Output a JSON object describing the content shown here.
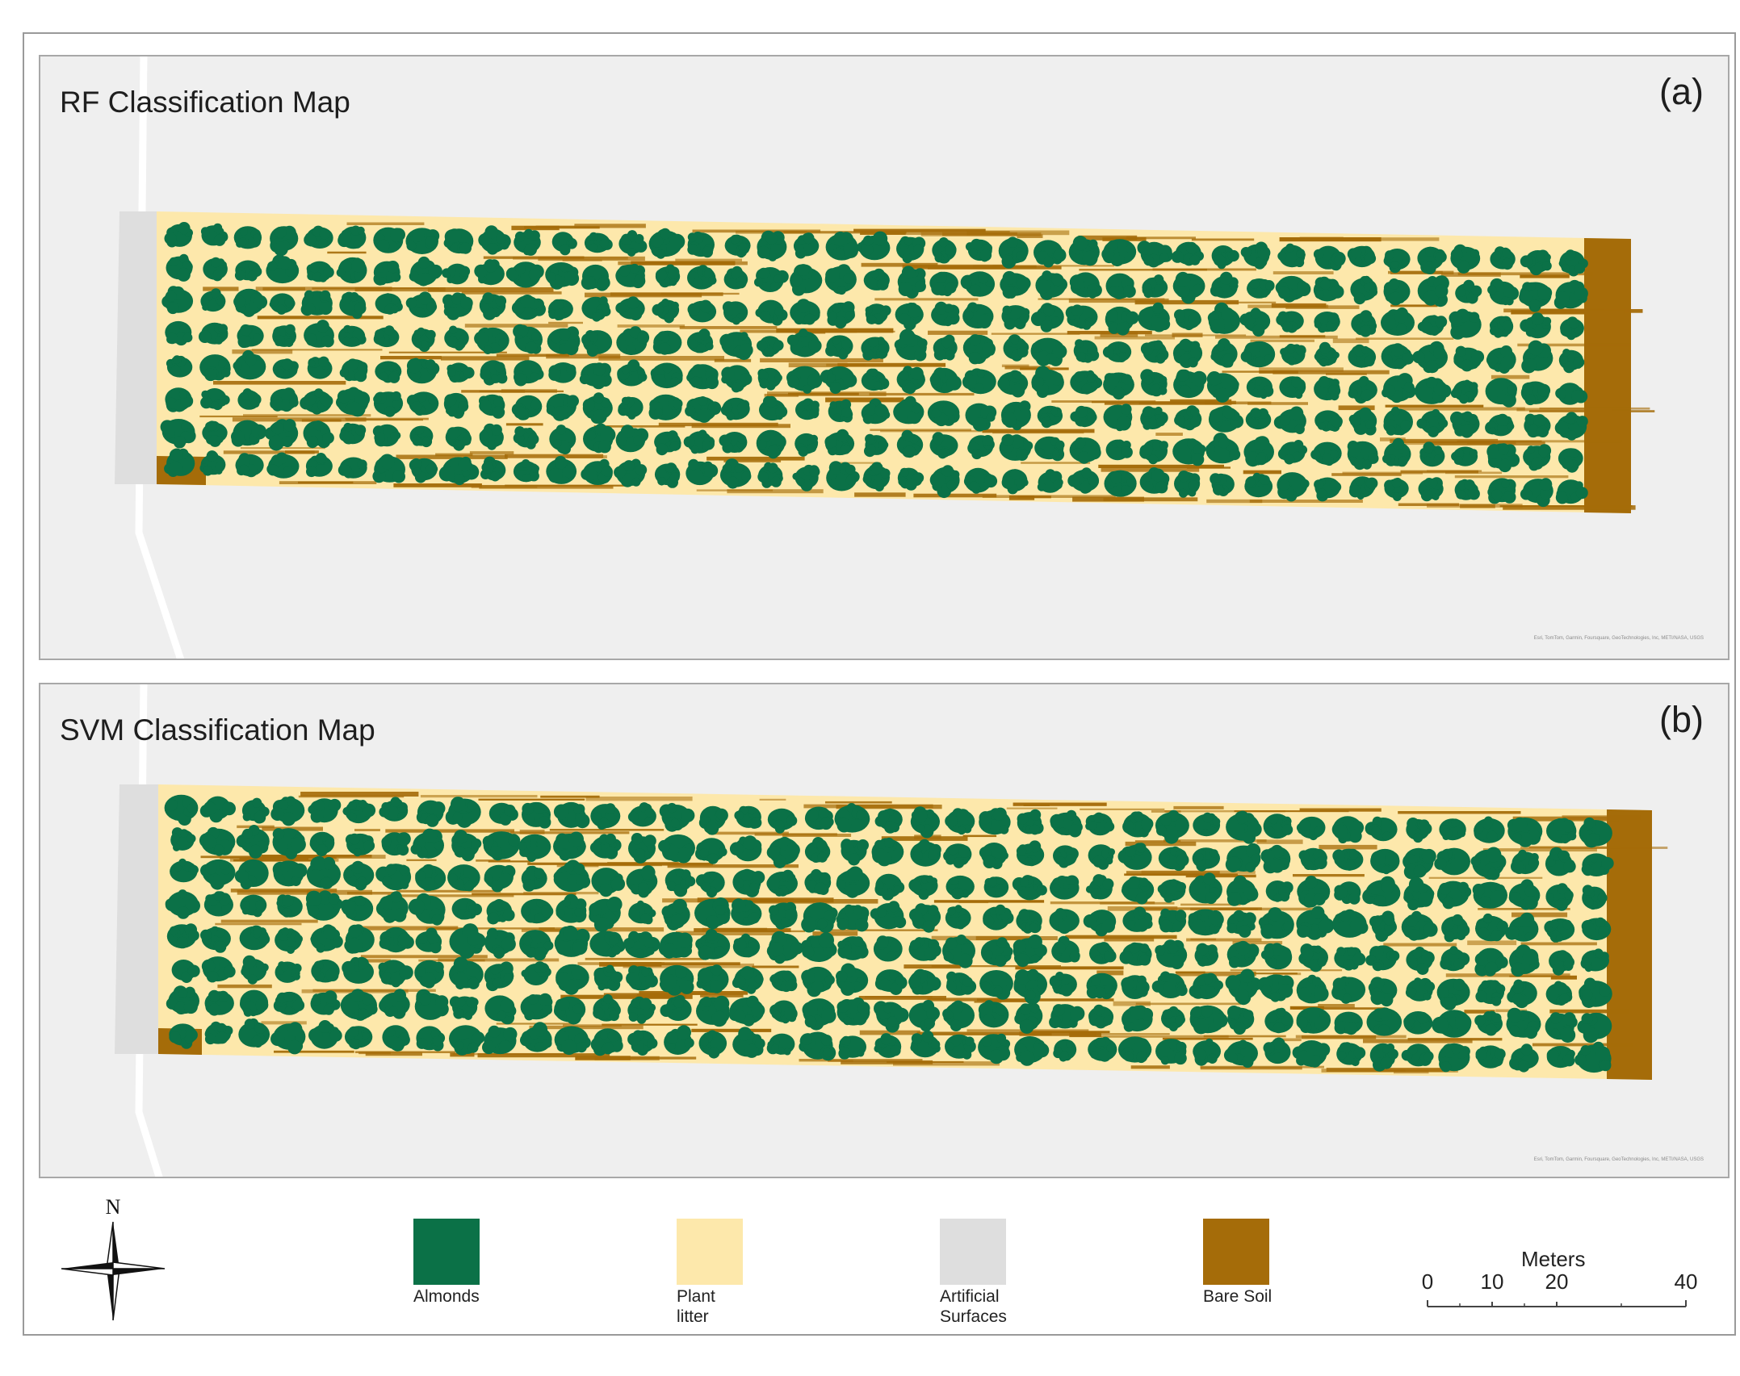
{
  "panels": [
    {
      "title": "RF Classification Map",
      "label": "(a)",
      "credit": "Esri, TomTom, Garmin, Foursquare, GeoTechnologies, Inc, METI/NASA, USGS"
    },
    {
      "title": "SVM Classification Map",
      "label": "(b)",
      "credit": "Esri, TomTom, Garmin, Foursquare, GeoTechnologies, Inc, METI/NASA, USGS"
    }
  ],
  "legend": {
    "items": [
      {
        "label": "Almonds",
        "color": "#0b7147"
      },
      {
        "label": "Plant\nlitter",
        "color": "#fde8ab"
      },
      {
        "label": "Artificial\nSurfaces",
        "color": "#dedede"
      },
      {
        "label": "Bare Soil",
        "color": "#a56c09"
      }
    ]
  },
  "north_arrow": {
    "label": "N",
    "icon": "compass-rose-icon"
  },
  "scale_bar": {
    "unit": "Meters",
    "ticks": [
      "0",
      "10",
      "20",
      "40"
    ],
    "tick_values": [
      0,
      10,
      20,
      40
    ]
  },
  "map_layers": {
    "background": "#efefef",
    "road": "#ffffff",
    "artificial": "#dedede",
    "litter": "#fde8ab",
    "soil": "#a56c09",
    "tree": "#0b7147",
    "tree_rows": 8,
    "trees_per_row": 41
  }
}
